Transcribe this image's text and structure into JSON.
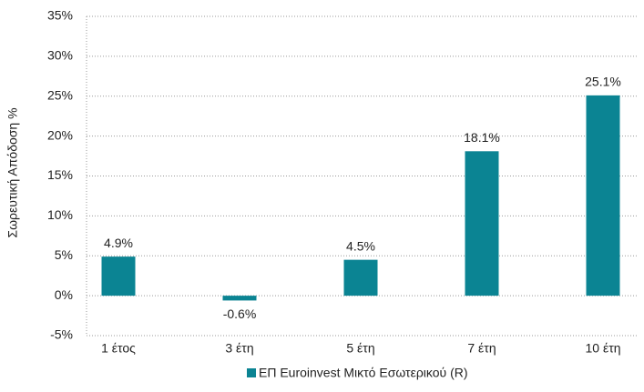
{
  "chart_data": {
    "type": "bar",
    "y_label": "Σωρευτική Απόδοση %",
    "categories": [
      "1 έτος",
      "3 έτη",
      "5 έτη",
      "7 έτη",
      "10 έτη"
    ],
    "series": [
      {
        "name": "ΕΠ Euroinvest Μικτό Εσωτερικού (R)",
        "color": "#0b8493",
        "values": [
          4.9,
          -0.6,
          4.5,
          18.1,
          25.1
        ],
        "value_labels": [
          "4.9%",
          "-0.6%",
          "4.5%",
          "18.1%",
          "25.1%"
        ]
      }
    ],
    "ylim": [
      -5,
      35
    ],
    "yticks": [
      {
        "value": -5,
        "label": "-5%"
      },
      {
        "value": 0,
        "label": "0%"
      },
      {
        "value": 5,
        "label": "5%"
      },
      {
        "value": 10,
        "label": "10%"
      },
      {
        "value": 15,
        "label": "15%"
      },
      {
        "value": 20,
        "label": "20%"
      },
      {
        "value": 25,
        "label": "25%"
      },
      {
        "value": 30,
        "label": "30%"
      },
      {
        "value": 35,
        "label": "35%"
      }
    ],
    "grid": true
  }
}
